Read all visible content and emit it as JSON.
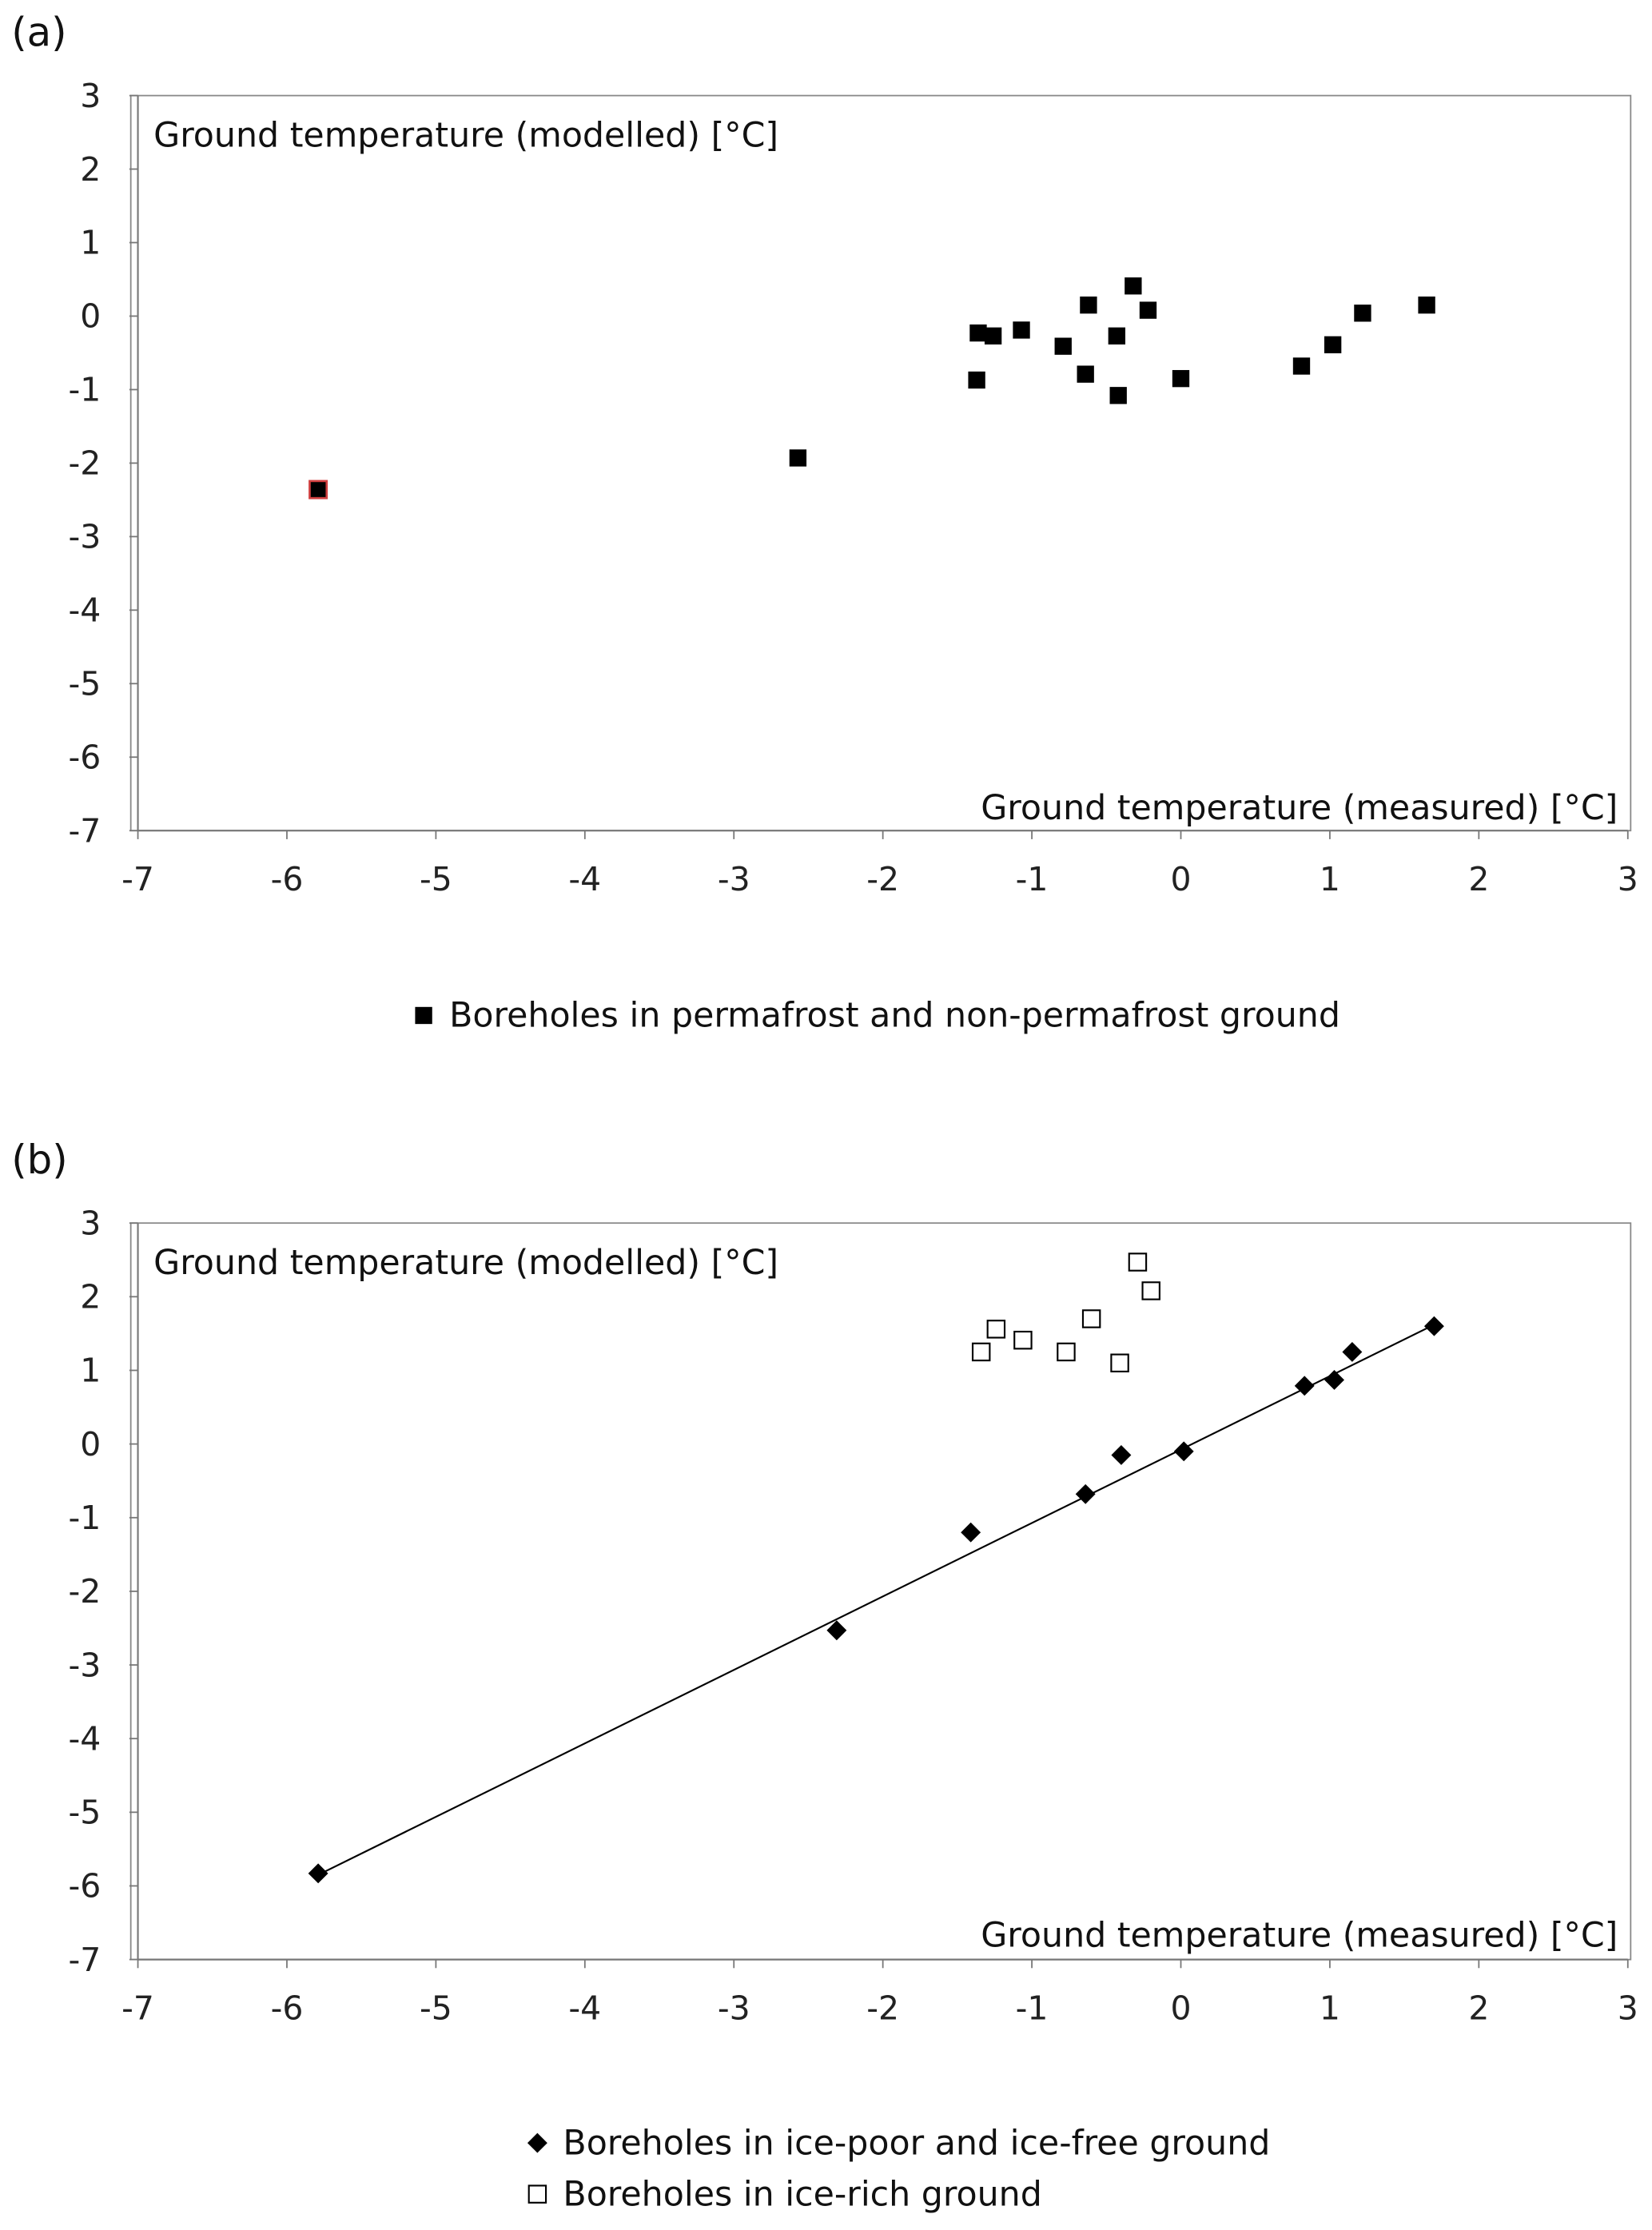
{
  "chart_data": [
    {
      "type": "scatter",
      "panel_label": "(a)",
      "xlabel": "Ground temperature (measured) [°C]",
      "ylabel": "Ground temperature (modelled) [°C]",
      "xlim": [
        -7,
        3
      ],
      "ylim": [
        -7,
        3
      ],
      "xticks": [
        "-7",
        "-6",
        "-5",
        "-4",
        "-3",
        "-2",
        "-1",
        "0",
        "1",
        "2",
        "3"
      ],
      "yticks": [
        "3",
        "2",
        "1",
        "0",
        "-1",
        "-2",
        "-3",
        "-4",
        "-5",
        "-6",
        "-7"
      ],
      "grid": false,
      "legend_position": "bottom",
      "series": [
        {
          "name": "Boreholes in permafrost and non-permafrost ground",
          "marker": "filled-square",
          "color": "#000000",
          "points": [
            {
              "x": -5.79,
              "y": -2.36,
              "outline": "#d04040"
            },
            {
              "x": -2.57,
              "y": -1.93
            },
            {
              "x": -1.37,
              "y": -0.87
            },
            {
              "x": -1.36,
              "y": -0.23
            },
            {
              "x": -1.26,
              "y": -0.27
            },
            {
              "x": -1.07,
              "y": -0.19
            },
            {
              "x": -0.79,
              "y": -0.41
            },
            {
              "x": -0.64,
              "y": -0.79
            },
            {
              "x": -0.62,
              "y": 0.15
            },
            {
              "x": -0.43,
              "y": -0.27
            },
            {
              "x": -0.42,
              "y": -1.08
            },
            {
              "x": -0.32,
              "y": 0.41
            },
            {
              "x": -0.22,
              "y": 0.08
            },
            {
              "x": 0.0,
              "y": -0.85
            },
            {
              "x": 0.81,
              "y": -0.68
            },
            {
              "x": 1.02,
              "y": -0.39
            },
            {
              "x": 1.22,
              "y": 0.04
            },
            {
              "x": 1.65,
              "y": 0.15
            }
          ]
        }
      ]
    },
    {
      "type": "scatter",
      "panel_label": "(b)",
      "xlabel": "Ground temperature (measured) [°C]",
      "ylabel": "Ground temperature (modelled) [°C]",
      "xlim": [
        -7,
        3
      ],
      "ylim": [
        -7,
        3
      ],
      "xticks": [
        "-7",
        "-6",
        "-5",
        "-4",
        "-3",
        "-2",
        "-1",
        "0",
        "1",
        "2",
        "3"
      ],
      "yticks": [
        "3",
        "2",
        "1",
        "0",
        "-1",
        "-2",
        "-3",
        "-4",
        "-5",
        "-6",
        "-7"
      ],
      "grid": false,
      "legend_position": "bottom",
      "trendline": {
        "from": {
          "x": -5.79,
          "y": -5.85
        },
        "to": {
          "x": 1.7,
          "y": 1.62
        },
        "color": "#000000"
      },
      "series": [
        {
          "name": "Boreholes in ice-poor and ice-free ground",
          "marker": "filled-diamond",
          "color": "#000000",
          "points": [
            {
              "x": -5.79,
              "y": -5.83
            },
            {
              "x": -2.31,
              "y": -2.53
            },
            {
              "x": -1.41,
              "y": -1.2
            },
            {
              "x": -0.64,
              "y": -0.68
            },
            {
              "x": -0.4,
              "y": -0.15
            },
            {
              "x": 0.02,
              "y": -0.1
            },
            {
              "x": 0.83,
              "y": 0.79
            },
            {
              "x": 1.03,
              "y": 0.87
            },
            {
              "x": 1.15,
              "y": 1.25
            },
            {
              "x": 1.7,
              "y": 1.6
            }
          ]
        },
        {
          "name": "Boreholes in ice-rich ground",
          "marker": "open-square",
          "color": "#000000",
          "points": [
            {
              "x": -1.34,
              "y": 1.25
            },
            {
              "x": -1.24,
              "y": 1.56
            },
            {
              "x": -1.06,
              "y": 1.41
            },
            {
              "x": -0.77,
              "y": 1.25
            },
            {
              "x": -0.6,
              "y": 1.7
            },
            {
              "x": -0.41,
              "y": 1.1
            },
            {
              "x": -0.29,
              "y": 2.47
            },
            {
              "x": -0.2,
              "y": 2.08
            }
          ]
        }
      ]
    }
  ]
}
